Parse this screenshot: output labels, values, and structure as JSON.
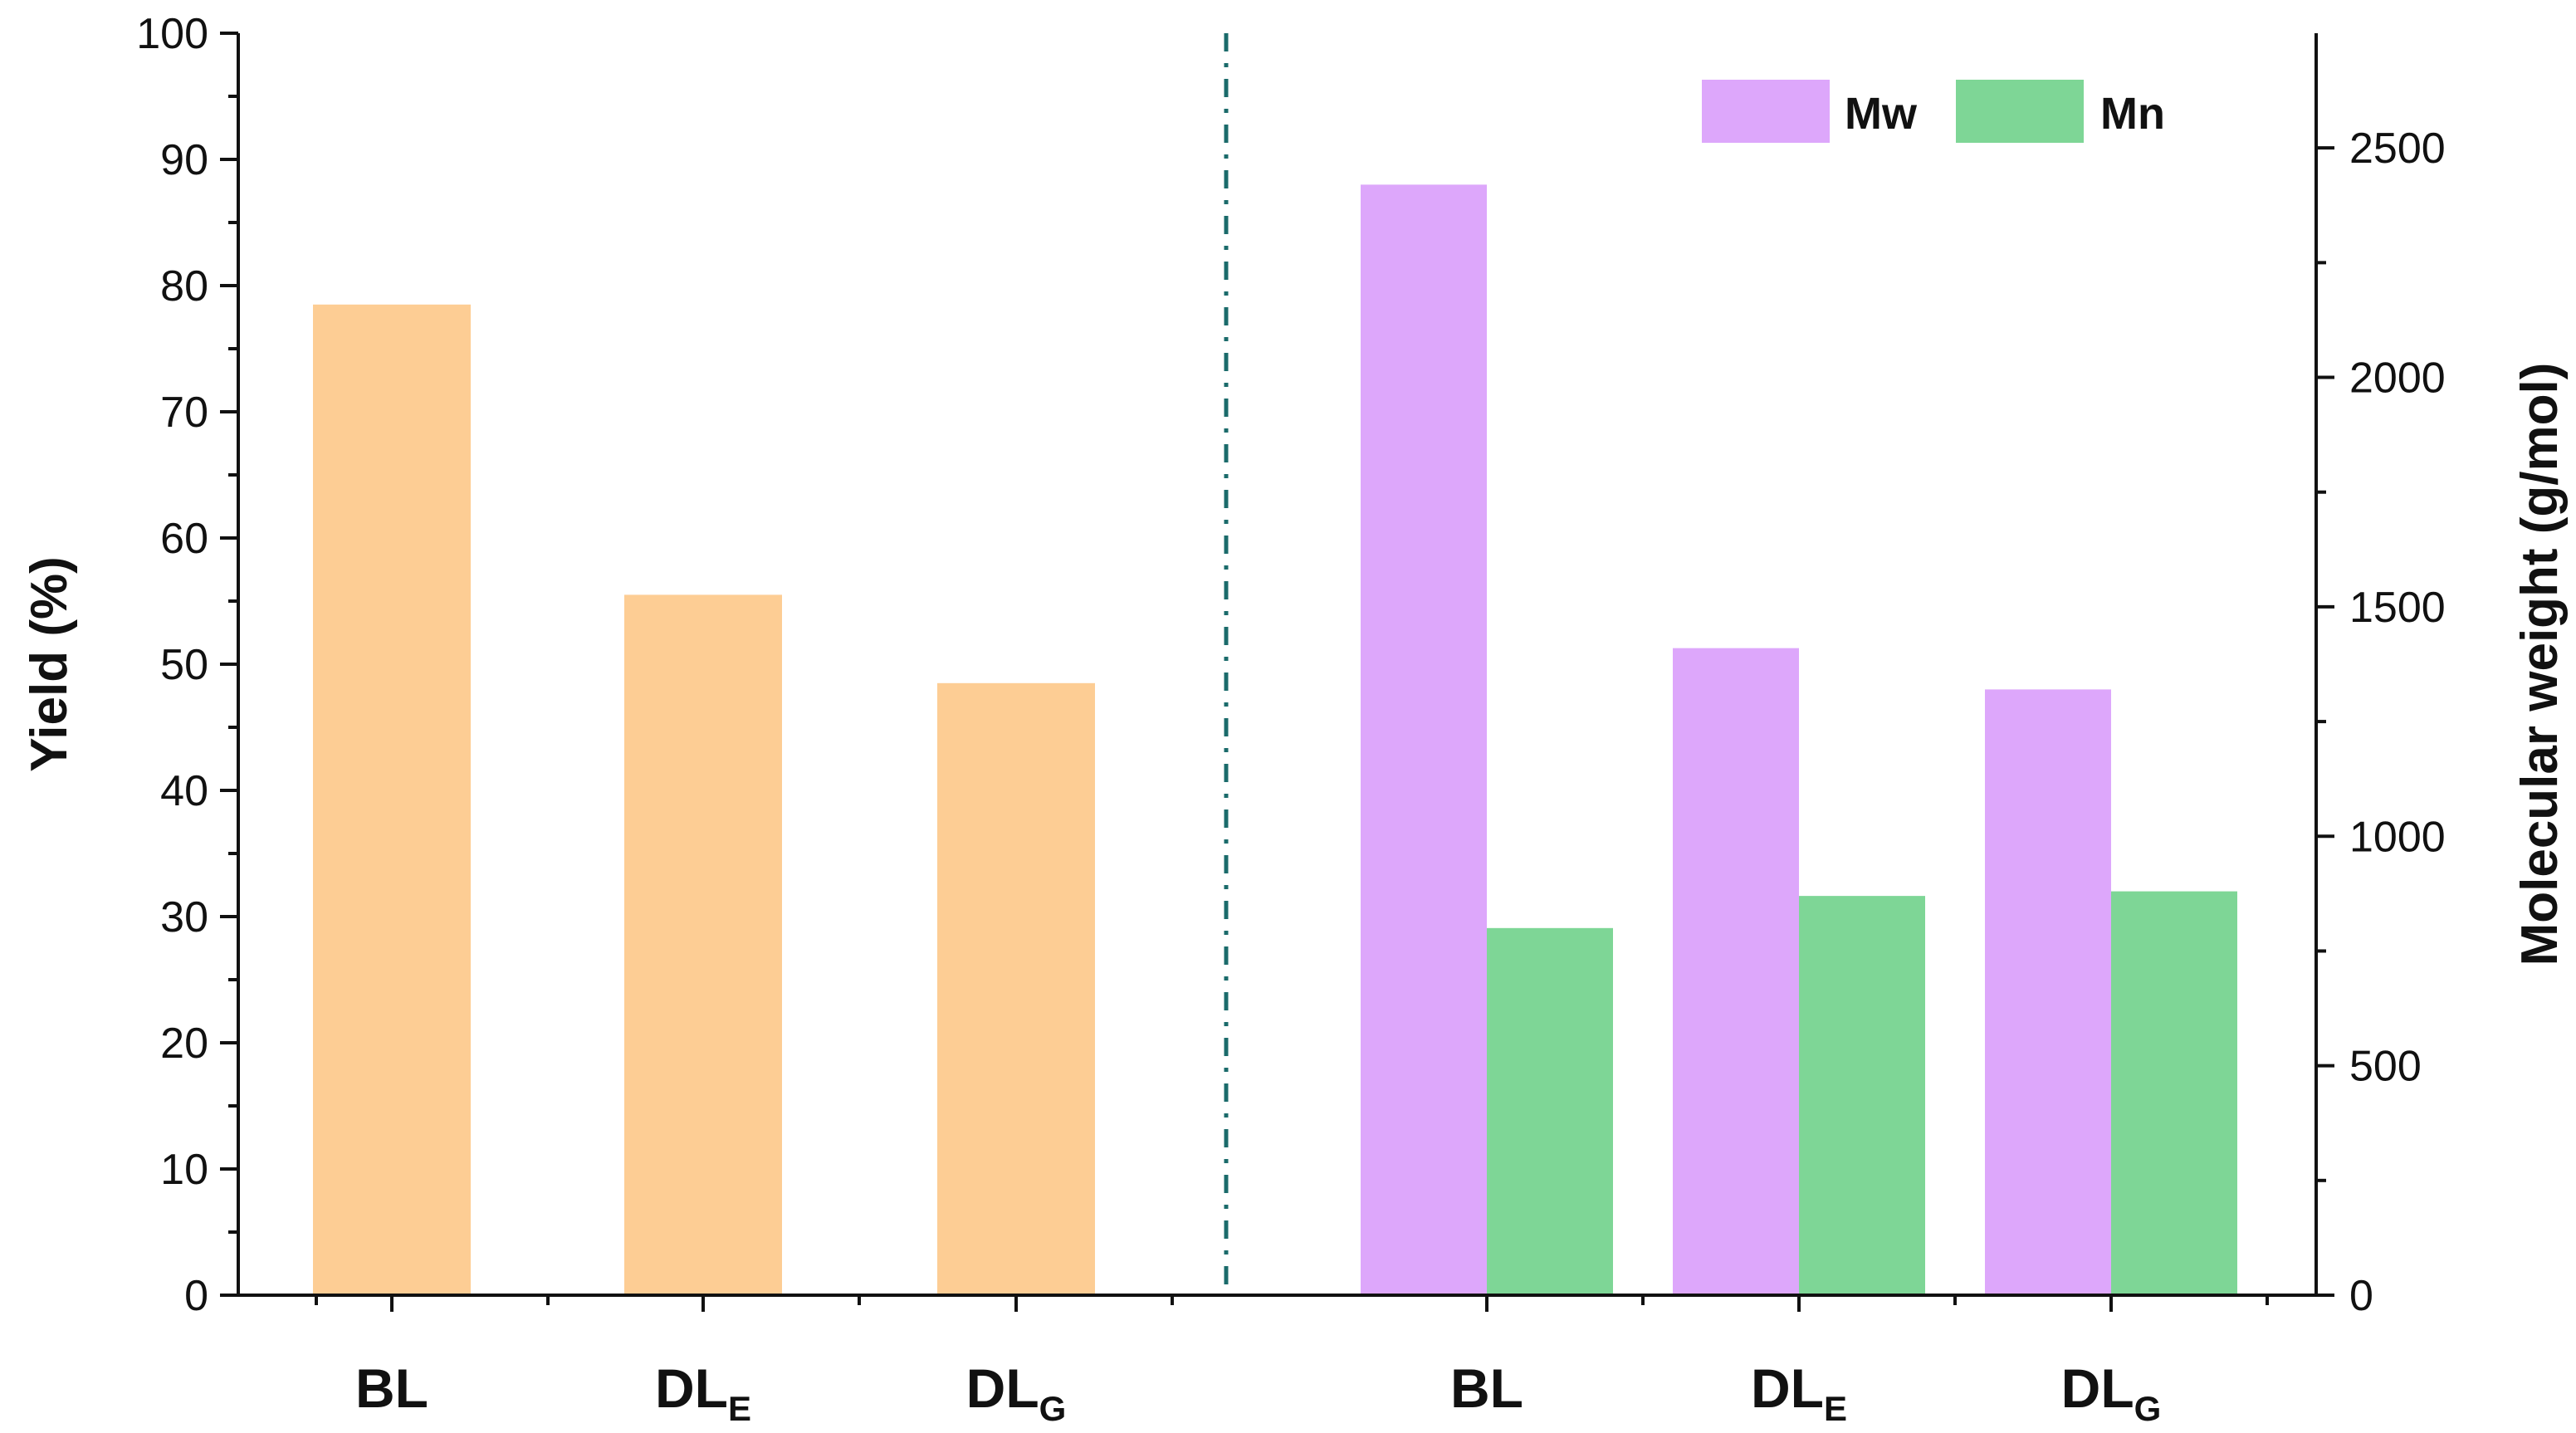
{
  "chart_data": {
    "type": "bar",
    "title": "",
    "colors": {
      "yield": "#FDCD94",
      "mw": "#DDA7FB",
      "mn": "#7ED696",
      "divider": "#1B6B6B",
      "axis": "#111111"
    },
    "left_panel": {
      "ylabel": "Yield (%)",
      "ylim": [
        0,
        100
      ],
      "yticks": [
        "0",
        "10",
        "20",
        "30",
        "40",
        "50",
        "60",
        "70",
        "80",
        "90",
        "100"
      ],
      "categories": [
        {
          "main": "BL",
          "sub": ""
        },
        {
          "main": "DL",
          "sub": "E"
        },
        {
          "main": "DL",
          "sub": "G"
        }
      ],
      "series": [
        {
          "name": "Yield",
          "values": [
            78.5,
            55.5,
            48.5
          ]
        }
      ]
    },
    "right_panel": {
      "ylabel": "Molecular weight (g/mol)",
      "ylim": [
        0,
        2750
      ],
      "yticks": [
        "0",
        "500",
        "1000",
        "1500",
        "2000",
        "2500"
      ],
      "categories": [
        {
          "main": "BL",
          "sub": ""
        },
        {
          "main": "DL",
          "sub": "E"
        },
        {
          "main": "DL",
          "sub": "G"
        }
      ],
      "series": [
        {
          "name": "Mw",
          "values": [
            2420,
            1410,
            1320
          ]
        },
        {
          "name": "Mn",
          "values": [
            800,
            870,
            880
          ]
        }
      ]
    },
    "legend": {
      "position": "top-right",
      "entries": [
        "Mw",
        "Mn"
      ]
    }
  }
}
